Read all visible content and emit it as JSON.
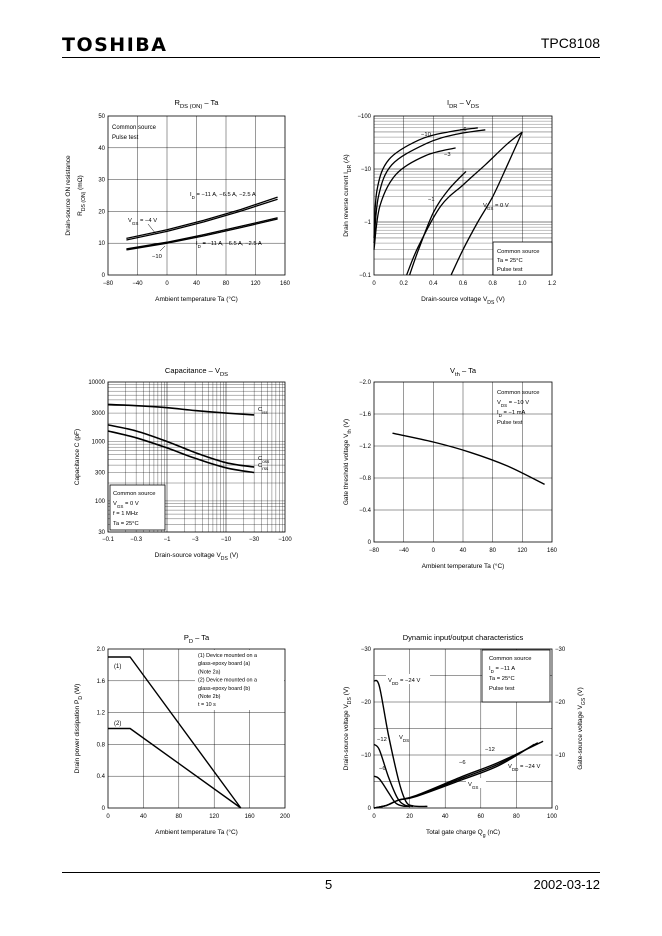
{
  "header": {
    "logo": "TOSHIBA",
    "part_number": "TPC8108"
  },
  "footer": {
    "page": "5",
    "date": "2002-03-12"
  },
  "chart_data": [
    {
      "id": "rds",
      "type": "line",
      "title": "R",
      "title_sub": "DS (ON)",
      "title_tail": " – Ta",
      "xlabel": "Ambient temperature    Ta    (°C)",
      "ylabel_line1": "Drain-source ON resistance",
      "ylabel_line2": "R",
      "ylabel_line2_sub": "DS (ON)",
      "ylabel_line2_tail": "  (mΩ)",
      "xlim": [
        -80,
        160
      ],
      "ylim": [
        0,
        50
      ],
      "xticks": [
        "−80",
        "−40",
        "0",
        "40",
        "80",
        "120",
        "160"
      ],
      "yticks": [
        "0",
        "10",
        "20",
        "30",
        "40",
        "50"
      ],
      "note": [
        "Common source",
        "Pulse test"
      ],
      "labels": {
        "id_upper": "I",
        "id_upper_sub": "D",
        "id_upper_tail": " = −11 A, −6.5 A, −2.5 A",
        "id_lower": "I",
        "id_lower_sub": "D",
        "id_lower_tail": " = −11 A, −6.5 A, −2.5 A",
        "vgs4": "V",
        "vgs4_sub": "GS",
        "vgs4_tail": " = −4 V",
        "vgs10": "−10"
      },
      "series": [
        {
          "name": "VGS=-4V",
          "x": [
            -55,
            0,
            50,
            100,
            150
          ],
          "y": [
            11.5,
            14.2,
            17.2,
            20.6,
            24.5
          ]
        },
        {
          "name": "VGS=-4V b",
          "x": [
            -55,
            0,
            50,
            100,
            150
          ],
          "y": [
            11.0,
            13.7,
            16.7,
            20.1,
            23.8
          ]
        },
        {
          "name": "VGS=-10V",
          "x": [
            -55,
            0,
            50,
            100,
            150
          ],
          "y": [
            8.2,
            10.3,
            12.7,
            15.3,
            18.0
          ]
        },
        {
          "name": "VGS=-10V b",
          "x": [
            -55,
            0,
            50,
            100,
            150
          ],
          "y": [
            7.9,
            10.0,
            12.3,
            14.9,
            17.6
          ]
        }
      ]
    },
    {
      "id": "idr",
      "type": "line",
      "title": "I",
      "title_sub": "DR",
      "title_tail": " – V",
      "title_sub2": "DS",
      "xlabel": "Drain-source voltage    V",
      "xlabel_sub": "DS",
      "xlabel_tail": "    (V)",
      "ylabel": "Drain reverse current    I",
      "ylabel_sub": "DR",
      "ylabel_tail": "    (A)",
      "xlim": [
        0,
        1.2
      ],
      "xticks": [
        "0",
        "0.2",
        "0.4",
        "0.6",
        "0.8",
        "1.0",
        "1.2"
      ],
      "yticks": [
        "−0.1",
        "−1",
        "−10",
        "−100"
      ],
      "note": [
        "Common source",
        "Ta = 25°C",
        "Pulse test"
      ],
      "labels": {
        "l10": "−10",
        "l6": "−6",
        "l3": "−3",
        "l1": "−1",
        "l0": "V",
        "l0_sub": "GS",
        "l0_tail": " = 0 V"
      },
      "series": [
        {
          "name": "-10",
          "x": [
            0.0,
            0.02,
            0.1,
            0.3,
            0.5,
            0.7
          ],
          "y": [
            0.5,
            4,
            15,
            35,
            50,
            60
          ]
        },
        {
          "name": "-6",
          "x": [
            0.0,
            0.03,
            0.12,
            0.35,
            0.55,
            0.75
          ],
          "y": [
            0.4,
            3,
            12,
            30,
            45,
            55
          ]
        },
        {
          "name": "-3",
          "x": [
            0.0,
            0.04,
            0.15,
            0.35,
            0.55
          ],
          "y": [
            0.3,
            2,
            8,
            18,
            25
          ]
        },
        {
          "name": "-1",
          "x": [
            0.24,
            0.3,
            0.4,
            0.5,
            0.62
          ],
          "y": [
            0.1,
            0.3,
            1.5,
            4,
            9
          ]
        },
        {
          "name": "0V",
          "x": [
            0.52,
            0.6,
            0.7,
            0.8,
            0.9,
            1.0
          ],
          "y": [
            0.1,
            0.3,
            1,
            3,
            12,
            50
          ]
        },
        {
          "name": "0V b",
          "x": [
            0.22,
            0.3,
            0.45,
            0.6,
            0.75,
            0.9,
            1.0
          ],
          "y": [
            0.1,
            0.35,
            2,
            5,
            12,
            30,
            50
          ]
        }
      ]
    },
    {
      "id": "cap",
      "type": "line",
      "title": "Capacitance – V",
      "title_sub": "DS",
      "xlabel": "Drain-source voltage    V",
      "xlabel_sub": "DS",
      "xlabel_tail": "    (V)",
      "ylabel": "Capacitance    C    (pF)",
      "xticks": [
        "−0.1",
        "−0.3",
        "−1",
        "−3",
        "−10",
        "−30",
        "−100"
      ],
      "yticks": [
        "30",
        "100",
        "300",
        "1000",
        "3000",
        "10000"
      ],
      "note": [
        "Common source",
        "V",
        "GS",
        " = 0 V",
        "f = 1 MHz",
        "Ta = 25°C"
      ],
      "labels": {
        "ciss": "C",
        "ciss_sub": "iss",
        "coss": "C",
        "coss_sub": "oss",
        "crss": "C",
        "crss_sub": "rss"
      },
      "series": [
        {
          "name": "Ciss",
          "x": [
            0.1,
            0.3,
            1,
            3,
            10,
            30
          ],
          "y": [
            4200,
            4000,
            3700,
            3300,
            3000,
            2800
          ]
        },
        {
          "name": "Coss",
          "x": [
            0.1,
            0.3,
            1,
            3,
            10,
            30
          ],
          "y": [
            1900,
            1500,
            1000,
            650,
            440,
            370
          ]
        },
        {
          "name": "Crss",
          "x": [
            0.1,
            0.3,
            1,
            3,
            10,
            30
          ],
          "y": [
            1500,
            1150,
            780,
            520,
            360,
            300
          ]
        }
      ]
    },
    {
      "id": "vth",
      "type": "line",
      "title": "V",
      "title_sub": "th",
      "title_tail": " – Ta",
      "xlabel": "Ambient temperature    Ta    (°C)",
      "ylabel": "Gate threshold voltage    V",
      "ylabel_sub": "th",
      "ylabel_tail": "    (V)",
      "xlim": [
        -80,
        160
      ],
      "ylim": [
        0,
        -2.0
      ],
      "xticks": [
        "−80",
        "−40",
        "0",
        "40",
        "80",
        "120",
        "160"
      ],
      "yticks": [
        "0",
        "−0.4",
        "−0.8",
        "−1.2",
        "−1.6",
        "−2.0"
      ],
      "note": [
        "Common source",
        "V",
        "DS",
        " = −10 V",
        "I",
        "D",
        " = −1 mA",
        "Pulse test"
      ],
      "series": [
        {
          "name": "Vth",
          "x": [
            -55,
            0,
            50,
            100,
            150
          ],
          "y": [
            -1.36,
            -1.25,
            -1.12,
            -0.95,
            -0.72
          ]
        }
      ]
    },
    {
      "id": "pd",
      "type": "line",
      "title": "P",
      "title_sub": "D",
      "title_tail": " – Ta",
      "xlabel": "Ambient temperature    Ta    (°C)",
      "ylabel": "Drain power dissipation    P",
      "ylabel_sub": "D",
      "ylabel_tail": "    (W)",
      "xlim": [
        0,
        200
      ],
      "ylim": [
        0,
        2.0
      ],
      "xticks": [
        "0",
        "40",
        "80",
        "120",
        "160",
        "200"
      ],
      "yticks": [
        "0",
        "0.4",
        "0.8",
        "1.2",
        "1.6",
        "2.0"
      ],
      "note": [
        "(1)  Device mounted on a",
        "       glass-epoxy board (a)",
        "       (Note 2a)",
        "(2)  Device mounted on a",
        "       glass-epoxy board (b)",
        "       (Note 2b)",
        "t = 10 s"
      ],
      "labels": {
        "c1": "(1)",
        "c2": "(2)"
      },
      "series": [
        {
          "name": "(1)",
          "x": [
            0,
            25,
            150
          ],
          "y": [
            1.9,
            1.9,
            0
          ]
        },
        {
          "name": "(2)",
          "x": [
            0,
            25,
            150
          ],
          "y": [
            1.0,
            1.0,
            0
          ]
        }
      ]
    },
    {
      "id": "dyn",
      "type": "line",
      "title": "Dynamic input/output characteristics",
      "xlabel": "Total gate charge    Q",
      "xlabel_sub": "g",
      "xlabel_tail": "    (nC)",
      "ylabel_left": "Drain-source voltage    V",
      "ylabel_left_sub": "DS",
      "ylabel_left_tail": "    (V)",
      "ylabel_right": "Gate-source voltage    V",
      "ylabel_right_sub": "GS",
      "ylabel_right_tail": "    (V)",
      "xlim": [
        0,
        100
      ],
      "ylim": [
        0,
        -30
      ],
      "xticks": [
        "0",
        "20",
        "40",
        "60",
        "80",
        "100"
      ],
      "yticks_left": [
        "0",
        "−10",
        "−20",
        "−30"
      ],
      "yticks_right": [
        "0",
        "−10",
        "−20",
        "−30"
      ],
      "note": [
        "Common source",
        "I",
        "D",
        " = −11 A",
        "Ta = 25°C",
        "Pulse test"
      ],
      "labels": {
        "vdd24": "V",
        "vdd24_sub": "DD",
        "vdd24_tail": " = −24 V",
        "l12": "−12",
        "l6": "−6",
        "vds": "V",
        "vds_sub": "DS",
        "l12b": "−12",
        "l6b": "−6",
        "vdd24b": "V",
        "vdd24b_sub": "DD",
        "vdd24b_tail": " = −24 V",
        "vgs": "V",
        "vgs_sub": "GS"
      },
      "series": [
        {
          "name": "VDS -24",
          "x": [
            0,
            3,
            8,
            14,
            18,
            22,
            30
          ],
          "y": [
            -24,
            -23,
            -14,
            -5,
            -1.2,
            -0.4,
            -0.3
          ]
        },
        {
          "name": "VDS -12",
          "x": [
            0,
            3,
            8,
            13,
            17,
            22
          ],
          "y": [
            -12,
            -11,
            -6,
            -2,
            -0.6,
            -0.3
          ]
        },
        {
          "name": "VDS -6",
          "x": [
            0,
            3,
            8,
            12,
            16,
            20
          ],
          "y": [
            -6,
            -5.5,
            -3,
            -1,
            -0.4,
            -0.3
          ]
        },
        {
          "name": "VGS -24",
          "x": [
            0,
            7,
            14,
            24,
            50,
            70,
            95
          ],
          "y": [
            0,
            -0.5,
            -1.5,
            -2.4,
            -6,
            -8.6,
            -12.6
          ]
        },
        {
          "name": "VGS -12",
          "x": [
            0,
            7,
            14,
            24,
            50,
            70,
            92
          ],
          "y": [
            0,
            -0.5,
            -1.5,
            -2.3,
            -5.7,
            -8.3,
            -12.3
          ]
        },
        {
          "name": "VGS -6",
          "x": [
            0,
            7,
            14,
            24,
            50,
            70,
            90
          ],
          "y": [
            0,
            -0.5,
            -1.5,
            -2.2,
            -5.4,
            -8.0,
            -12.0
          ]
        }
      ]
    }
  ]
}
